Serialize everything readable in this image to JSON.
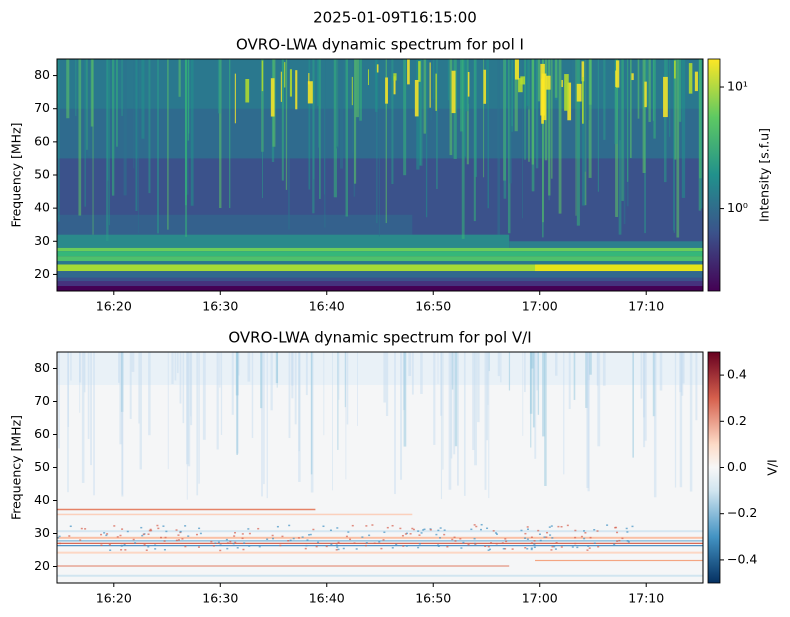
{
  "suptitle": "2025-01-09T16:15:00",
  "chart_data": [
    {
      "type": "heatmap",
      "title": "OVRO-LWA dynamic spectrum for pol I",
      "ylabel": "Frequency [MHz]",
      "xlim": [
        "16:14:40",
        "17:15:20"
      ],
      "xticks": [
        "16:20",
        "16:30",
        "16:40",
        "16:50",
        "17:00",
        "17:10"
      ],
      "ylim": [
        15,
        85
      ],
      "yticks": [
        20,
        30,
        40,
        50,
        60,
        70,
        80
      ],
      "colorbar": {
        "label": "Intensity [s.f.u]",
        "scale": "log",
        "colormap": "viridis",
        "lim": [
          0.21,
          17
        ],
        "ticks": [
          {
            "value": 1,
            "label": "10⁰"
          },
          {
            "value": 10,
            "label": "10¹"
          }
        ]
      }
    },
    {
      "type": "heatmap",
      "title": "OVRO-LWA dynamic spectrum for pol V/I",
      "ylabel": "Frequency [MHz]",
      "xlim": [
        "16:14:40",
        "17:15:20"
      ],
      "xticks": [
        "16:20",
        "16:30",
        "16:40",
        "16:50",
        "17:00",
        "17:10"
      ],
      "ylim": [
        15,
        85
      ],
      "yticks": [
        20,
        30,
        40,
        50,
        60,
        70,
        80
      ],
      "colorbar": {
        "label": "V/I",
        "scale": "linear",
        "colormap": "RdBu_r",
        "lim": [
          -0.5,
          0.5
        ],
        "ticks": [
          {
            "value": -0.4,
            "label": "−0.4"
          },
          {
            "value": -0.2,
            "label": "−0.2"
          },
          {
            "value": 0,
            "label": "0.0"
          },
          0.2,
          0.4
        ]
      }
    }
  ]
}
